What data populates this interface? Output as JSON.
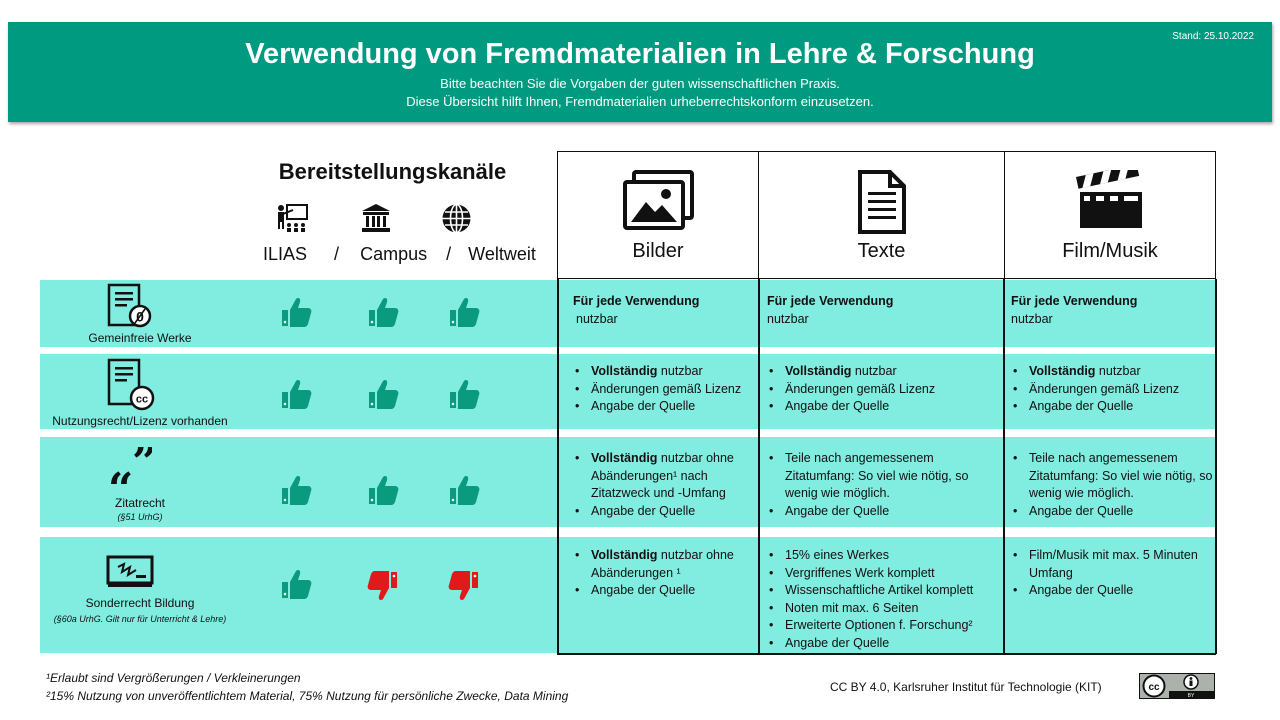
{
  "header": {
    "title": "Verwendung von Fremdmaterialien in Lehre & Forschung",
    "subtitle1": "Bitte beachten Sie die Vorgaben der guten wissenschaftlichen Praxis.",
    "subtitle2": "Diese Übersicht hilft Ihnen, Fremdmaterialien urheberrechtskonform einzusetzen.",
    "stand": "Stand: 25.10.2022"
  },
  "channels": {
    "title": "Bereitstellungskanäle",
    "ilias": "ILIAS",
    "campus": "Campus",
    "weltweit": "Weltweit",
    "sep": "/"
  },
  "columns": {
    "bilder": "Bilder",
    "texte": "Texte",
    "film": "Film/Musik"
  },
  "rows": {
    "gemeinfrei": {
      "name": "Gemeinfreie Werke",
      "ratings": [
        "up",
        "up",
        "up"
      ],
      "bilder": {
        "lead": "Für jede Verwendung",
        "rest": "nutzbar"
      },
      "texte": {
        "lead": "Für jede Verwendung",
        "rest": "nutzbar"
      },
      "film": {
        "lead": "Für jede Verwendung",
        "rest": "nutzbar"
      }
    },
    "lizenz": {
      "name": "Nutzungsrecht/Lizenz vorhanden",
      "ratings": [
        "up",
        "up",
        "up"
      ],
      "bilder": {
        "b1_lead": "Vollständig",
        "b1_rest": " nutzbar",
        "b2": "Änderungen gemäß Lizenz",
        "b3": "Angabe der Quelle"
      },
      "texte": {
        "b1_lead": "Vollständig",
        "b1_rest": " nutzbar",
        "b2": "Änderungen gemäß Lizenz",
        "b3": "Angabe der Quelle"
      },
      "film": {
        "b1_lead": "Vollständig",
        "b1_rest": " nutzbar",
        "b2": "Änderungen gemäß Lizenz",
        "b3": "Angabe der Quelle"
      }
    },
    "zitat": {
      "name": "Zitatrecht",
      "note": "(§51 UrhG)",
      "ratings": [
        "up",
        "up",
        "up"
      ],
      "bilder": {
        "b1_lead": "Vollständig",
        "b1_rest": " nutzbar ohne Abänderungen¹ nach Zitatzweck und -Umfang",
        "b2": "Angabe der Quelle"
      },
      "texte": {
        "b1": "Teile nach angemessenem Zitatumfang: So viel wie nötig, so wenig wie möglich.",
        "b2": "Angabe der Quelle"
      },
      "film": {
        "b1": "Teile nach angemessenem Zitatumfang: So viel wie nötig, so wenig wie möglich.",
        "b2": "Angabe der Quelle"
      }
    },
    "bildung": {
      "name": "Sonderrecht Bildung",
      "note": "(§60a UrhG. Gilt nur für Unterricht & Lehre)",
      "ratings": [
        "up",
        "down",
        "down"
      ],
      "bilder": {
        "b1_lead": "Vollständig",
        "b1_rest": " nutzbar ohne Abänderungen ¹",
        "b2": "Angabe der Quelle"
      },
      "texte": {
        "b1": "15% eines Werkes",
        "b2": "Vergriffenes Werk komplett",
        "b3": "Wissenschaftliche Artikel komplett",
        "b4": "Noten mit max. 6 Seiten",
        "b5": "Erweiterte Optionen f. Forschung²",
        "b6": "Angabe der Quelle"
      },
      "film": {
        "b1": "Film/Musik mit max. 5 Minuten Umfang",
        "b2": "Angabe der Quelle"
      }
    }
  },
  "footnotes": {
    "f1": "¹Erlaubt sind Vergrößerungen / Verkleinerungen",
    "f2": "²15% Nutzung von unveröffentlichtem Material, 75% Nutzung für persönliche Zwecke, Data Mining"
  },
  "license": "CC BY 4.0,  Karlsruher Institut für Technologie (KIT)",
  "colors": {
    "header": "#009a80",
    "row": "#81ece0",
    "thumb_up": "#0a9a7e",
    "thumb_down": "#e0191d"
  }
}
